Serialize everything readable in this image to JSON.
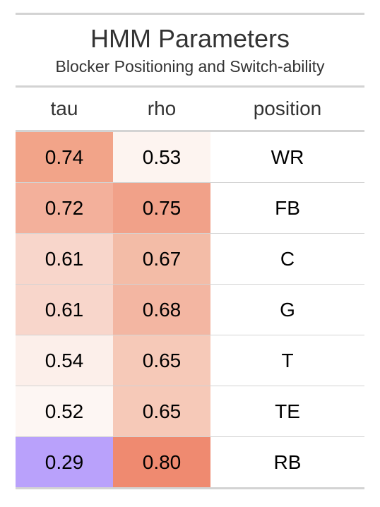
{
  "title": "HMM Parameters",
  "subtitle": "Blocker Positioning and Switch-ability",
  "columns": [
    "tau",
    "rho",
    "position"
  ],
  "rows": [
    {
      "tau": "0.74",
      "rho": "0.53",
      "position": "WR",
      "tau_color": "#f2a489",
      "rho_color": "#fdf4f0"
    },
    {
      "tau": "0.72",
      "rho": "0.75",
      "position": "FB",
      "tau_color": "#f3b09b",
      "rho_color": "#f1a189"
    },
    {
      "tau": "0.61",
      "rho": "0.67",
      "position": "C",
      "tau_color": "#f8d6cb",
      "rho_color": "#f3bca7"
    },
    {
      "tau": "0.61",
      "rho": "0.68",
      "position": "G",
      "tau_color": "#f8d6cb",
      "rho_color": "#f3b6a2"
    },
    {
      "tau": "0.54",
      "rho": "0.65",
      "position": "T",
      "tau_color": "#fcefea",
      "rho_color": "#f6c9b8"
    },
    {
      "tau": "0.52",
      "rho": "0.65",
      "position": "TE",
      "tau_color": "#fdf6f3",
      "rho_color": "#f6c9b8"
    },
    {
      "tau": "0.29",
      "rho": "0.80",
      "position": "RB",
      "tau_color": "#b9a1fb",
      "rho_color": "#ef8a70"
    }
  ]
}
